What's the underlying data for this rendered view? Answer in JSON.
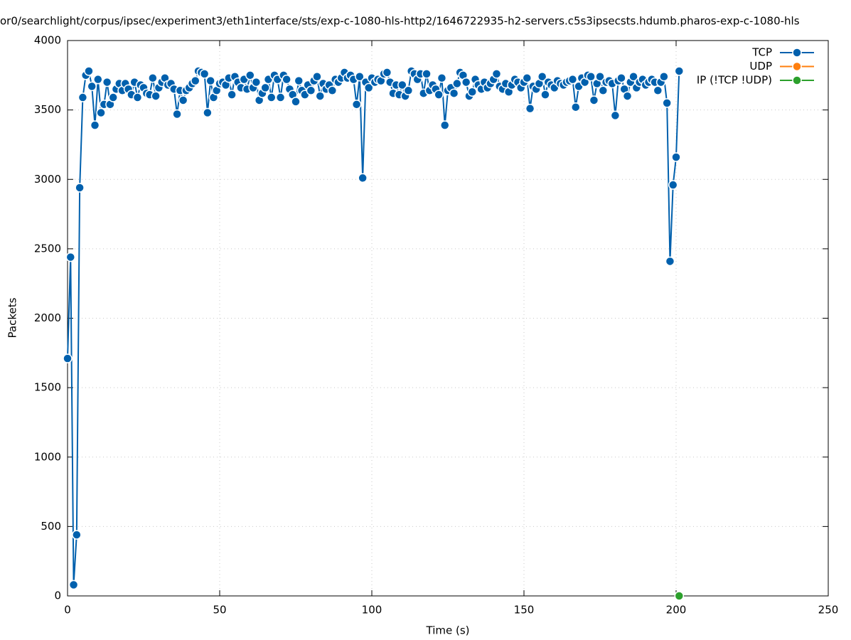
{
  "chart_data": {
    "type": "line",
    "title": "or0/searchlight/corpus/ipsec/experiment3/eth1interface/sts/exp-c-1080-hls-http2/1646722935-h2-servers.c5s3ipsecsts.hdumb.pharos-exp-c-1080-hls",
    "x_label": "Time (s)",
    "y_label": "Packets",
    "xlim": [
      0,
      250
    ],
    "xticks": [
      0,
      50,
      100,
      150,
      200,
      250
    ],
    "ylim": [
      0,
      4000
    ],
    "yticks": [
      0,
      500,
      1000,
      1500,
      2000,
      2500,
      3000,
      3500,
      4000
    ],
    "grid": true,
    "legend": "top right",
    "series": [
      {
        "name": "TCP",
        "color": "#0060ad",
        "x": [
          0,
          1,
          2,
          3,
          4,
          5,
          6,
          7,
          8,
          9,
          10,
          11,
          12,
          13,
          14,
          15,
          16,
          17,
          18,
          19,
          20,
          21,
          22,
          23,
          24,
          25,
          26,
          27,
          28,
          29,
          30,
          31,
          32,
          33,
          34,
          35,
          36,
          37,
          38,
          39,
          40,
          41,
          42,
          43,
          44,
          45,
          46,
          47,
          48,
          49,
          50,
          51,
          52,
          53,
          54,
          55,
          56,
          57,
          58,
          59,
          60,
          61,
          62,
          63,
          64,
          65,
          66,
          67,
          68,
          69,
          70,
          71,
          72,
          73,
          74,
          75,
          76,
          77,
          78,
          79,
          80,
          81,
          82,
          83,
          84,
          85,
          86,
          87,
          88,
          89,
          90,
          91,
          92,
          93,
          94,
          95,
          96,
          97,
          98,
          99,
          100,
          101,
          102,
          103,
          104,
          105,
          106,
          107,
          108,
          109,
          110,
          111,
          112,
          113,
          114,
          115,
          116,
          117,
          118,
          119,
          120,
          121,
          122,
          123,
          124,
          125,
          126,
          127,
          128,
          129,
          130,
          131,
          132,
          133,
          134,
          135,
          136,
          137,
          138,
          139,
          140,
          141,
          142,
          143,
          144,
          145,
          146,
          147,
          148,
          149,
          150,
          151,
          152,
          153,
          154,
          155,
          156,
          157,
          158,
          159,
          160,
          161,
          162,
          163,
          164,
          165,
          166,
          167,
          168,
          169,
          170,
          171,
          172,
          173,
          174,
          175,
          176,
          177,
          178,
          179,
          180,
          181,
          182,
          183,
          184,
          185,
          186,
          187,
          188,
          189,
          190,
          191,
          192,
          193,
          194,
          195,
          196,
          197,
          198,
          199,
          200,
          201
        ],
        "values": [
          1710,
          2440,
          80,
          440,
          2940,
          3590,
          3750,
          3780,
          3670,
          3390,
          3720,
          3480,
          3540,
          3700,
          3540,
          3590,
          3650,
          3690,
          3640,
          3690,
          3650,
          3610,
          3700,
          3590,
          3680,
          3660,
          3620,
          3610,
          3730,
          3600,
          3660,
          3700,
          3730,
          3680,
          3690,
          3650,
          3470,
          3640,
          3570,
          3640,
          3660,
          3690,
          3710,
          3780,
          3770,
          3760,
          3480,
          3710,
          3590,
          3640,
          3690,
          3700,
          3680,
          3730,
          3610,
          3740,
          3700,
          3660,
          3720,
          3650,
          3750,
          3660,
          3700,
          3570,
          3620,
          3660,
          3720,
          3590,
          3750,
          3720,
          3590,
          3750,
          3720,
          3650,
          3610,
          3560,
          3710,
          3640,
          3610,
          3680,
          3640,
          3710,
          3740,
          3600,
          3690,
          3650,
          3680,
          3640,
          3720,
          3700,
          3730,
          3770,
          3730,
          3750,
          3720,
          3540,
          3740,
          3010,
          3700,
          3660,
          3730,
          3700,
          3720,
          3710,
          3760,
          3770,
          3700,
          3620,
          3680,
          3610,
          3680,
          3600,
          3640,
          3780,
          3760,
          3720,
          3760,
          3620,
          3760,
          3640,
          3680,
          3650,
          3610,
          3730,
          3390,
          3640,
          3660,
          3620,
          3690,
          3770,
          3750,
          3700,
          3600,
          3630,
          3720,
          3680,
          3650,
          3700,
          3660,
          3690,
          3720,
          3760,
          3670,
          3650,
          3690,
          3630,
          3680,
          3720,
          3700,
          3660,
          3700,
          3730,
          3510,
          3670,
          3650,
          3690,
          3740,
          3610,
          3700,
          3680,
          3660,
          3710,
          3690,
          3680,
          3700,
          3710,
          3720,
          3520,
          3670,
          3730,
          3700,
          3750,
          3740,
          3570,
          3690,
          3740,
          3640,
          3700,
          3710,
          3690,
          3460,
          3710,
          3730,
          3650,
          3600,
          3700,
          3740,
          3660,
          3700,
          3720,
          3680,
          3700,
          3720,
          3700,
          3640,
          3700,
          3740,
          3550,
          2410,
          2960,
          3160,
          3780
        ]
      },
      {
        "name": "UDP",
        "color": "#ff7f0e",
        "x": [],
        "values": []
      },
      {
        "name": "IP (!TCP  !UDP)",
        "color": "#2ca02c",
        "x": [
          201
        ],
        "values": [
          0
        ]
      }
    ]
  }
}
